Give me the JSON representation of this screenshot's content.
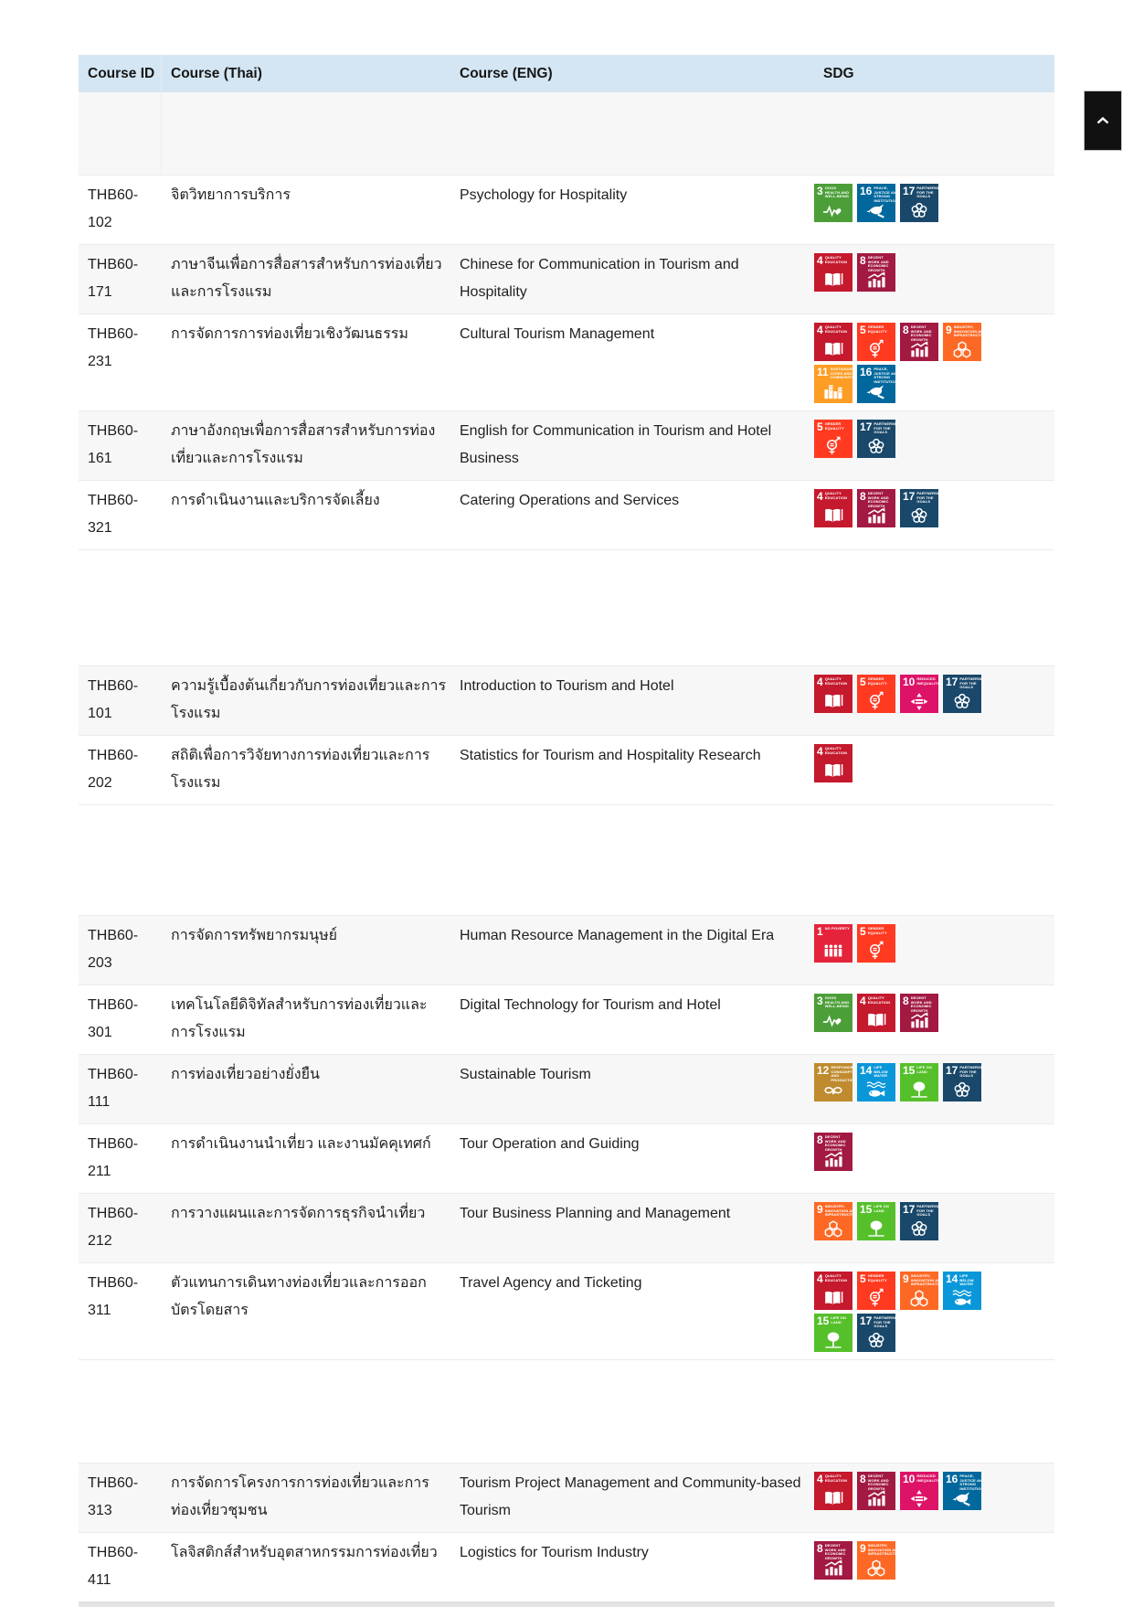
{
  "theme": {
    "header_bg": "#d4e6f3",
    "stripe_bg": "#f7f7f7",
    "row_border": "#ebebeb",
    "button_bg": "#111111"
  },
  "table": {
    "columns": [
      {
        "key": "id",
        "label": "Course ID"
      },
      {
        "key": "thai",
        "label": "Course (Thai)"
      },
      {
        "key": "eng",
        "label": "Course (ENG)"
      },
      {
        "key": "sdg",
        "label": "SDG"
      }
    ],
    "rows": [
      {
        "id": "THB60-102",
        "thai": "จิตวิทยาการบริการ",
        "eng": "Psychology for Hospitality",
        "sdgs": [
          "3",
          "16",
          "17"
        ]
      },
      {
        "id": "THB60-171",
        "thai": "ภาษาจีนเพื่อการสื่อสารสำหรับการท่องเที่ยวและการโรงแรม",
        "eng": "Chinese for Communication in Tourism and Hospitality",
        "sdgs": [
          "4",
          "8"
        ]
      },
      {
        "id": "THB60-231",
        "thai": "การจัดการการท่องเที่ยวเชิงวัฒนธรรม",
        "eng": "Cultural Tourism Management",
        "sdgs": [
          "4",
          "5",
          "8",
          "9",
          "11",
          "16"
        ]
      },
      {
        "id": "THB60-161",
        "thai": "ภาษาอังกฤษเพื่อการสื่อสารสำหรับการท่องเที่ยวและการโรงแรม",
        "eng": "English for Communication in Tourism and Hotel Business",
        "sdgs": [
          "5",
          "17"
        ]
      },
      {
        "id": "THB60-321",
        "thai": "การดำเนินงานและบริการจัดเลี้ยง",
        "eng": "Catering Operations and Services",
        "sdgs": [
          "4",
          "8",
          "17"
        ],
        "gap_after": 126
      },
      {
        "id": "THB60-101",
        "thai": "ความรู้เบื้องต้นเกี่ยวกับการท่องเที่ยวและการโรงแรม",
        "eng": "Introduction to Tourism and Hotel",
        "sdgs": [
          "4",
          "5",
          "10",
          "17"
        ]
      },
      {
        "id": "THB60-202",
        "thai": "สถิติเพื่อการวิจัยทางการท่องเที่ยวและการโรงแรม",
        "eng": "Statistics for Tourism and Hospitality Research",
        "sdgs": [
          "4"
        ],
        "gap_after": 120
      },
      {
        "id": "THB60-203",
        "thai": "การจัดการทรัพยากรมนุษย์",
        "eng": "Human Resource Management in the Digital Era",
        "sdgs": [
          "1",
          "5"
        ]
      },
      {
        "id": "THB60-301",
        "thai": "เทคโนโลยีดิจิทัลสำหรับการท่องเที่ยวและการโรงแรม",
        "eng": "Digital Technology for Tourism and Hotel",
        "sdgs": [
          "3",
          "4",
          "8"
        ]
      },
      {
        "id": "THB60-111",
        "thai": "การท่องเที่ยวอย่างยั่งยืน",
        "eng": "Sustainable Tourism",
        "sdgs": [
          "12",
          "14",
          "15",
          "17"
        ]
      },
      {
        "id": "THB60-211",
        "thai": "การดำเนินงานนำเที่ยว และงานมัคคุเทศก์",
        "eng": "Tour Operation and Guiding",
        "sdgs": [
          "8"
        ]
      },
      {
        "id": "THB60-212",
        "thai": "การวางแผนและการจัดการธุรกิจนำเที่ยว",
        "eng": "Tour Business Planning and Management",
        "sdgs": [
          "9",
          "15",
          "17"
        ]
      },
      {
        "id": "THB60-311",
        "thai": "ตัวแทนการเดินทางท่องเที่ยวและการออกบัตรโดยสาร",
        "eng": "Travel Agency and Ticketing",
        "sdgs": [
          "4",
          "5",
          "9",
          "14",
          "15",
          "17"
        ],
        "gap_after": 112
      },
      {
        "id": "THB60-313",
        "thai": "การจัดการโครงการการท่องเที่ยวและการท่องเที่ยวชุมชน",
        "eng": "Tourism Project Management and Community-based Tourism",
        "sdgs": [
          "4",
          "8",
          "10",
          "16"
        ]
      },
      {
        "id": "THB60-411",
        "thai": "โลจิสติกส์สำหรับอุตสาหกรรมการท่องเที่ยว",
        "eng": "Logistics for Tourism Industry",
        "sdgs": [
          "8",
          "9"
        ]
      }
    ]
  },
  "sdg_goals": {
    "1": {
      "title": "NO POVERTY",
      "color": "#E5243B"
    },
    "3": {
      "title": "GOOD HEALTH AND WELL-BEING",
      "color": "#4C9F38"
    },
    "4": {
      "title": "QUALITY EDUCATION",
      "color": "#C5192D"
    },
    "5": {
      "title": "GENDER EQUALITY",
      "color": "#FF3A21"
    },
    "8": {
      "title": "DECENT WORK AND ECONOMIC GROWTH",
      "color": "#A21942"
    },
    "9": {
      "title": "INDUSTRY, INNOVATION AND INFRASTRUCTURE",
      "color": "#FD6925"
    },
    "10": {
      "title": "REDUCED INEQUALITIES",
      "color": "#DD1367"
    },
    "11": {
      "title": "SUSTAINABLE CITIES AND COMMUNITIES",
      "color": "#FD9D24"
    },
    "12": {
      "title": "RESPONSIBLE CONSUMPTION AND PRODUCTION",
      "color": "#BF8B2E"
    },
    "14": {
      "title": "LIFE BELOW WATER",
      "color": "#0A97D9"
    },
    "15": {
      "title": "LIFE ON LAND",
      "color": "#56C02B"
    },
    "16": {
      "title": "PEACE, JUSTICE AND STRONG INSTITUTIONS",
      "color": "#00689D"
    },
    "17": {
      "title": "PARTNERSHIPS FOR THE GOALS",
      "color": "#19486A"
    }
  },
  "scroll_top_button": {
    "icon": "chevron-up"
  }
}
